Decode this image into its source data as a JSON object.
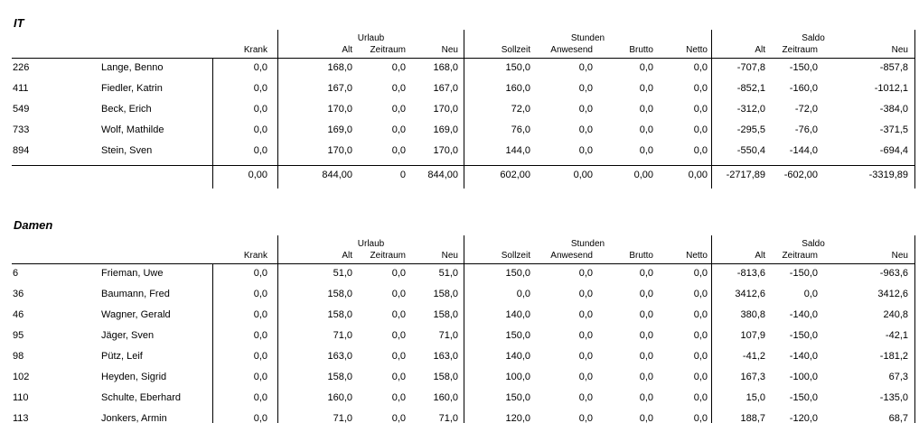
{
  "report": {
    "header": {
      "groups": [
        {
          "label": "Urlaub"
        },
        {
          "label": "Stunden"
        },
        {
          "label": "Saldo"
        }
      ],
      "columns": [
        "Krank",
        "Alt",
        "Zeitraum",
        "Neu",
        "Sollzeit",
        "Anwesend",
        "Brutto",
        "Netto",
        "Alt",
        "Zeitraum",
        "Neu"
      ]
    },
    "text_color": "#000000",
    "line_color": "#000000",
    "sections": [
      {
        "title": "IT",
        "rows": [
          {
            "id": "226",
            "name": "Lange, Benno",
            "values": [
              "0,0",
              "168,0",
              "0,0",
              "168,0",
              "150,0",
              "0,0",
              "0,0",
              "0,0",
              "-707,8",
              "-150,0",
              "-857,8"
            ]
          },
          {
            "id": "411",
            "name": "Fiedler, Katrin",
            "values": [
              "0,0",
              "167,0",
              "0,0",
              "167,0",
              "160,0",
              "0,0",
              "0,0",
              "0,0",
              "-852,1",
              "-160,0",
              "-1012,1"
            ]
          },
          {
            "id": "549",
            "name": "Beck, Erich",
            "values": [
              "0,0",
              "170,0",
              "0,0",
              "170,0",
              "72,0",
              "0,0",
              "0,0",
              "0,0",
              "-312,0",
              "-72,0",
              "-384,0"
            ]
          },
          {
            "id": "733",
            "name": "Wolf, Mathilde",
            "values": [
              "0,0",
              "169,0",
              "0,0",
              "169,0",
              "76,0",
              "0,0",
              "0,0",
              "0,0",
              "-295,5",
              "-76,0",
              "-371,5"
            ]
          },
          {
            "id": "894",
            "name": "Stein, Sven",
            "values": [
              "0,0",
              "170,0",
              "0,0",
              "170,0",
              "144,0",
              "0,0",
              "0,0",
              "0,0",
              "-550,4",
              "-144,0",
              "-694,4"
            ]
          }
        ],
        "totals": [
          "0,00",
          "844,00",
          "0",
          "844,00",
          "602,00",
          "0,00",
          "0,00",
          "0,00",
          "-2717,89",
          "-602,00",
          "-3319,89"
        ]
      },
      {
        "title": "Damen",
        "rows": [
          {
            "id": "6",
            "name": "Frieman, Uwe",
            "values": [
              "0,0",
              "51,0",
              "0,0",
              "51,0",
              "150,0",
              "0,0",
              "0,0",
              "0,0",
              "-813,6",
              "-150,0",
              "-963,6"
            ]
          },
          {
            "id": "36",
            "name": "Baumann, Fred",
            "values": [
              "0,0",
              "158,0",
              "0,0",
              "158,0",
              "0,0",
              "0,0",
              "0,0",
              "0,0",
              "3412,6",
              "0,0",
              "3412,6"
            ]
          },
          {
            "id": "46",
            "name": "Wagner, Gerald",
            "values": [
              "0,0",
              "158,0",
              "0,0",
              "158,0",
              "140,0",
              "0,0",
              "0,0",
              "0,0",
              "380,8",
              "-140,0",
              "240,8"
            ]
          },
          {
            "id": "95",
            "name": "Jäger, Sven",
            "values": [
              "0,0",
              "71,0",
              "0,0",
              "71,0",
              "150,0",
              "0,0",
              "0,0",
              "0,0",
              "107,9",
              "-150,0",
              "-42,1"
            ]
          },
          {
            "id": "98",
            "name": "Pütz, Leif",
            "values": [
              "0,0",
              "163,0",
              "0,0",
              "163,0",
              "140,0",
              "0,0",
              "0,0",
              "0,0",
              "-41,2",
              "-140,0",
              "-181,2"
            ]
          },
          {
            "id": "102",
            "name": "Heyden, Sigrid",
            "values": [
              "0,0",
              "158,0",
              "0,0",
              "158,0",
              "100,0",
              "0,0",
              "0,0",
              "0,0",
              "167,3",
              "-100,0",
              "67,3"
            ]
          },
          {
            "id": "110",
            "name": "Schulte, Eberhard",
            "values": [
              "0,0",
              "160,0",
              "0,0",
              "160,0",
              "150,0",
              "0,0",
              "0,0",
              "0,0",
              "15,0",
              "-150,0",
              "-135,0"
            ]
          },
          {
            "id": "113",
            "name": "Jonkers, Armin",
            "values": [
              "0,0",
              "71,0",
              "0,0",
              "71,0",
              "120,0",
              "0,0",
              "0,0",
              "0,0",
              "188,7",
              "-120,0",
              "68,7"
            ]
          }
        ],
        "totals": null
      }
    ]
  }
}
